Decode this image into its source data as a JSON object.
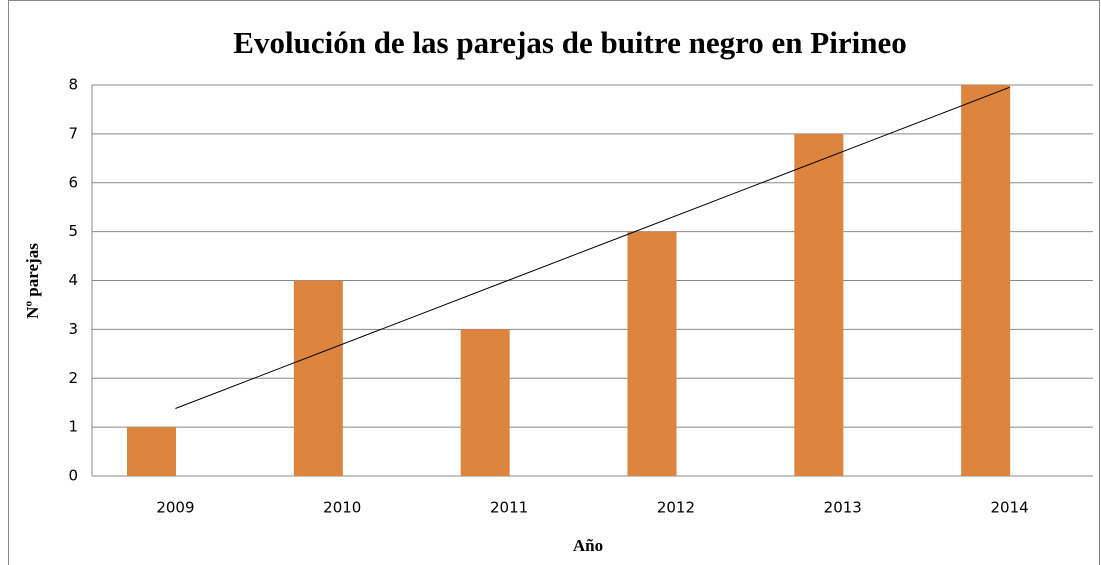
{
  "chart_data": {
    "type": "bar",
    "title": "Evolución de las parejas de buitre negro en Pirineo",
    "x_label": "Año",
    "y_label": "Nº parejas",
    "categories": [
      "2009",
      "2010",
      "2011",
      "2012",
      "2013",
      "2014"
    ],
    "values": [
      1,
      4,
      3,
      5,
      7,
      8
    ],
    "color": "#dd843f",
    "ylim": [
      0,
      8
    ],
    "yticks": [
      0,
      1,
      2,
      3,
      4,
      5,
      6,
      7,
      8
    ],
    "grid": true,
    "trendline": true
  }
}
